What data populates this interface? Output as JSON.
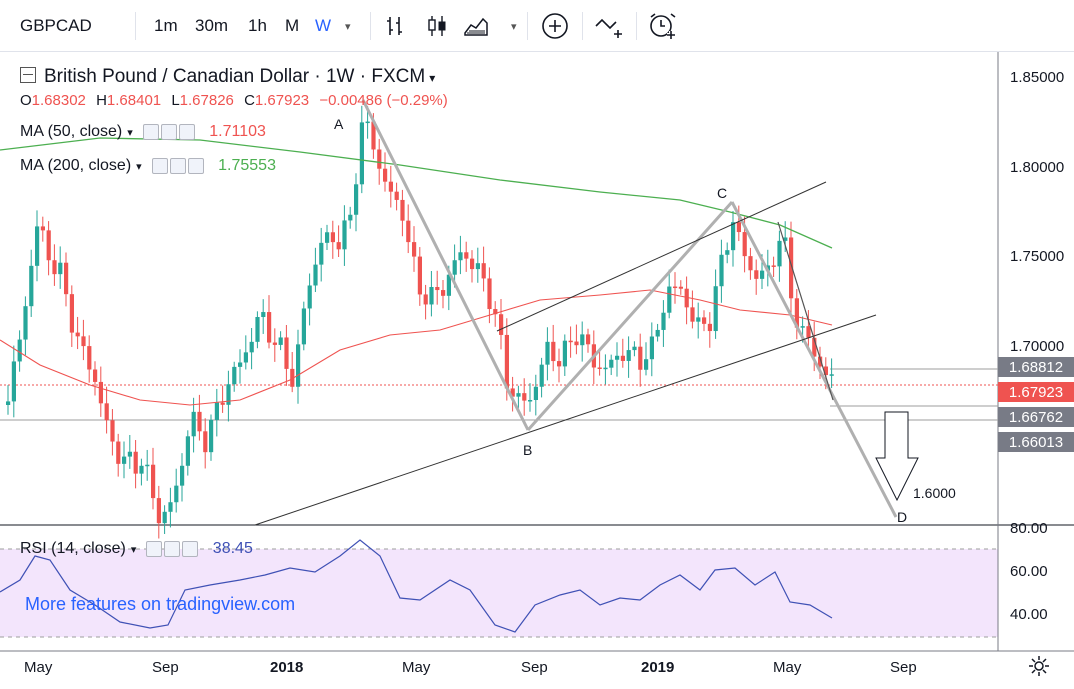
{
  "toolbar": {
    "symbol": "GBPCAD",
    "intervals": [
      "1m",
      "30m",
      "1h",
      "M",
      "W"
    ],
    "active_interval": "W",
    "icons": [
      "bar-chart-icon",
      "candles-icon",
      "area-chart-icon",
      "add-indicator-icon",
      "compare-icon",
      "alert-icon"
    ]
  },
  "legend": {
    "title": "British Pound / Canadian Dollar · 1W · FXCM",
    "ohlc": {
      "o_label": "O",
      "o": "1.68302",
      "h_label": "H",
      "h": "1.68401",
      "l_label": "L",
      "l": "1.67826",
      "c_label": "C",
      "c": "1.67923",
      "change": "−0.00486 (−0.29%)"
    },
    "ma50_label": "MA (50, close)",
    "ma50_value": "1.71103",
    "ma200_label": "MA (200, close)",
    "ma200_value": "1.75553",
    "rsi_label": "RSI (14, close)",
    "rsi_value": "38.45"
  },
  "price_axis": {
    "ticks": [
      "1.85000",
      "1.80000",
      "1.75000",
      "1.70000",
      "80.00",
      "60.00",
      "40.00"
    ],
    "labels": [
      {
        "text": "1.68812",
        "color": "#787b86"
      },
      {
        "text": "1.67923",
        "color": "#ef5350"
      },
      {
        "text": "1.66762",
        "color": "#787b86"
      },
      {
        "text": "1.66013",
        "color": "#787b86"
      }
    ]
  },
  "time_axis": [
    "May",
    "Sep",
    "2018",
    "May",
    "Sep",
    "2019",
    "May",
    "Sep"
  ],
  "annotations": {
    "points": [
      "A",
      "B",
      "C",
      "D"
    ],
    "target": "1.6000"
  },
  "promo_text": "More features on tradingview.com",
  "colors": {
    "up": "#26a69a",
    "down": "#ef5350",
    "ma50": "#ef5350",
    "ma200": "#4caf50",
    "rsi": "#3f51b5",
    "rsi_band": "#f3e5fc",
    "accent": "#2962ff"
  }
}
